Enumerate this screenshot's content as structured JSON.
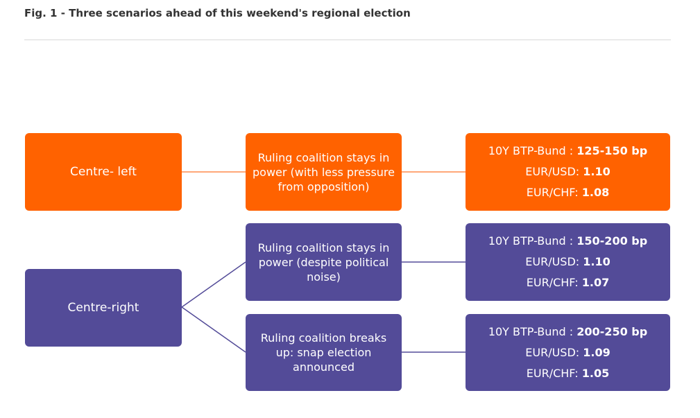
{
  "figure": {
    "title": "Fig. 1 - Three scenarios ahead of this weekend's regional election"
  },
  "colors": {
    "centre_left": "#ff6200",
    "centre_right": "#534b98",
    "rule": "#d8d8d8",
    "text": "#333333"
  },
  "nodes": {
    "centre_left": "Centre- left",
    "centre_right": "Centre-right"
  },
  "scenarios": [
    {
      "lines": [
        "Ruling coalition stays in",
        "power (with less pressure",
        "from opposition)"
      ]
    },
    {
      "lines": [
        "Ruling coalition stays in",
        "power (despite political",
        "noise)"
      ]
    },
    {
      "lines": [
        "Ruling coalition breaks",
        "up: snap election",
        "announced"
      ]
    }
  ],
  "outcomes": [
    {
      "rows": [
        {
          "label": "10Y BTP-Bund : ",
          "value": "125-150 bp"
        },
        {
          "label": "EUR/USD: ",
          "value": "1.10"
        },
        {
          "label": "EUR/CHF: ",
          "value": "1.08"
        }
      ]
    },
    {
      "rows": [
        {
          "label": "10Y BTP-Bund : ",
          "value": "150-200 bp"
        },
        {
          "label": "EUR/USD: ",
          "value": "1.10"
        },
        {
          "label": "EUR/CHF: ",
          "value": "1.07"
        }
      ]
    },
    {
      "rows": [
        {
          "label": "10Y BTP-Bund : ",
          "value": "200-250 bp"
        },
        {
          "label": "EUR/USD: ",
          "value": "1.09"
        },
        {
          "label": "EUR/CHF: ",
          "value": "1.05"
        }
      ]
    }
  ]
}
